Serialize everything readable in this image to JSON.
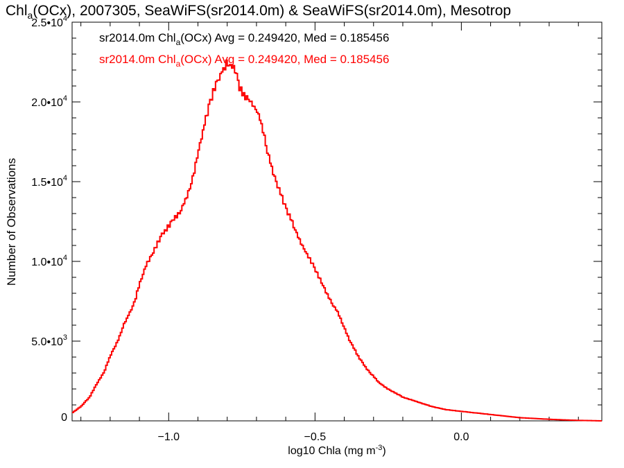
{
  "chart_data": {
    "type": "line",
    "title": "Chl",
    "title_sub": "a",
    "title_rest": "(OCx), 2007305, SeaWiFS(sr2014.0m) & SeaWiFS(sr2014.0m), Mesotrop",
    "xlabel": "log10 Chla (mg m",
    "xlabel_sup": "-3",
    "xlabel_end": ")",
    "ylabel": "Number of Observations",
    "xlim": [
      -1.33,
      0.48
    ],
    "ylim": [
      0,
      25000
    ],
    "x_ticks": [
      {
        "value": -1.0,
        "label": "−1.0"
      },
      {
        "value": -0.5,
        "label": "−0.5"
      },
      {
        "value": 0.0,
        "label": "0.0"
      }
    ],
    "y_ticks": [
      {
        "value": 0,
        "base": "0",
        "exp": ""
      },
      {
        "value": 5000,
        "base": "5.0•10",
        "exp": "3"
      },
      {
        "value": 10000,
        "base": "1.0•10",
        "exp": "4"
      },
      {
        "value": 15000,
        "base": "1.5•10",
        "exp": "4"
      },
      {
        "value": 20000,
        "base": "2.0•10",
        "exp": "4"
      },
      {
        "value": 25000,
        "base": "2.5•10",
        "exp": "4"
      }
    ],
    "series": [
      {
        "name": "sr2014.0m Chla(OCx)",
        "legend_a": "sr2014.0m Chl",
        "legend_sub": "a",
        "legend_b": "(OCx) Avg = 0.249420, Med = 0.185456",
        "color": "#000000"
      },
      {
        "name": "sr2014.0m Chla(OCx)",
        "legend_a": "sr2014.0m Chl",
        "legend_sub": "a",
        "legend_b": "(OCx) Avg = 0.249420, Med = 0.185456",
        "color": "#ff0000"
      }
    ],
    "curve": {
      "x": [
        -1.33,
        -1.3,
        -1.27,
        -1.25,
        -1.22,
        -1.2,
        -1.17,
        -1.15,
        -1.12,
        -1.1,
        -1.08,
        -1.05,
        -1.02,
        -1.0,
        -0.98,
        -0.96,
        -0.94,
        -0.92,
        -0.9,
        -0.88,
        -0.86,
        -0.84,
        -0.82,
        -0.8,
        -0.79,
        -0.78,
        -0.77,
        -0.76,
        -0.75,
        -0.74,
        -0.73,
        -0.72,
        -0.7,
        -0.68,
        -0.66,
        -0.64,
        -0.62,
        -0.6,
        -0.58,
        -0.55,
        -0.52,
        -0.5,
        -0.48,
        -0.45,
        -0.42,
        -0.4,
        -0.38,
        -0.35,
        -0.32,
        -0.3,
        -0.28,
        -0.25,
        -0.22,
        -0.2,
        -0.15,
        -0.1,
        -0.05,
        0.0,
        0.05,
        0.1,
        0.15,
        0.2,
        0.25,
        0.3,
        0.35,
        0.4,
        0.48
      ],
      "y": [
        500,
        900,
        1500,
        2200,
        3100,
        4100,
        5200,
        6200,
        7300,
        8600,
        9700,
        10800,
        11800,
        12300,
        12800,
        13200,
        14000,
        15200,
        16800,
        18500,
        20000,
        21200,
        22000,
        22600,
        22500,
        22300,
        22000,
        21000,
        20800,
        20500,
        20300,
        20100,
        19600,
        18600,
        16800,
        15500,
        14400,
        13500,
        12600,
        11300,
        10300,
        9600,
        8800,
        7700,
        6800,
        5900,
        5000,
        4000,
        3200,
        2800,
        2400,
        2000,
        1700,
        1500,
        1200,
        900,
        700,
        600,
        500,
        400,
        300,
        200,
        150,
        100,
        60,
        30,
        0
      ]
    }
  }
}
